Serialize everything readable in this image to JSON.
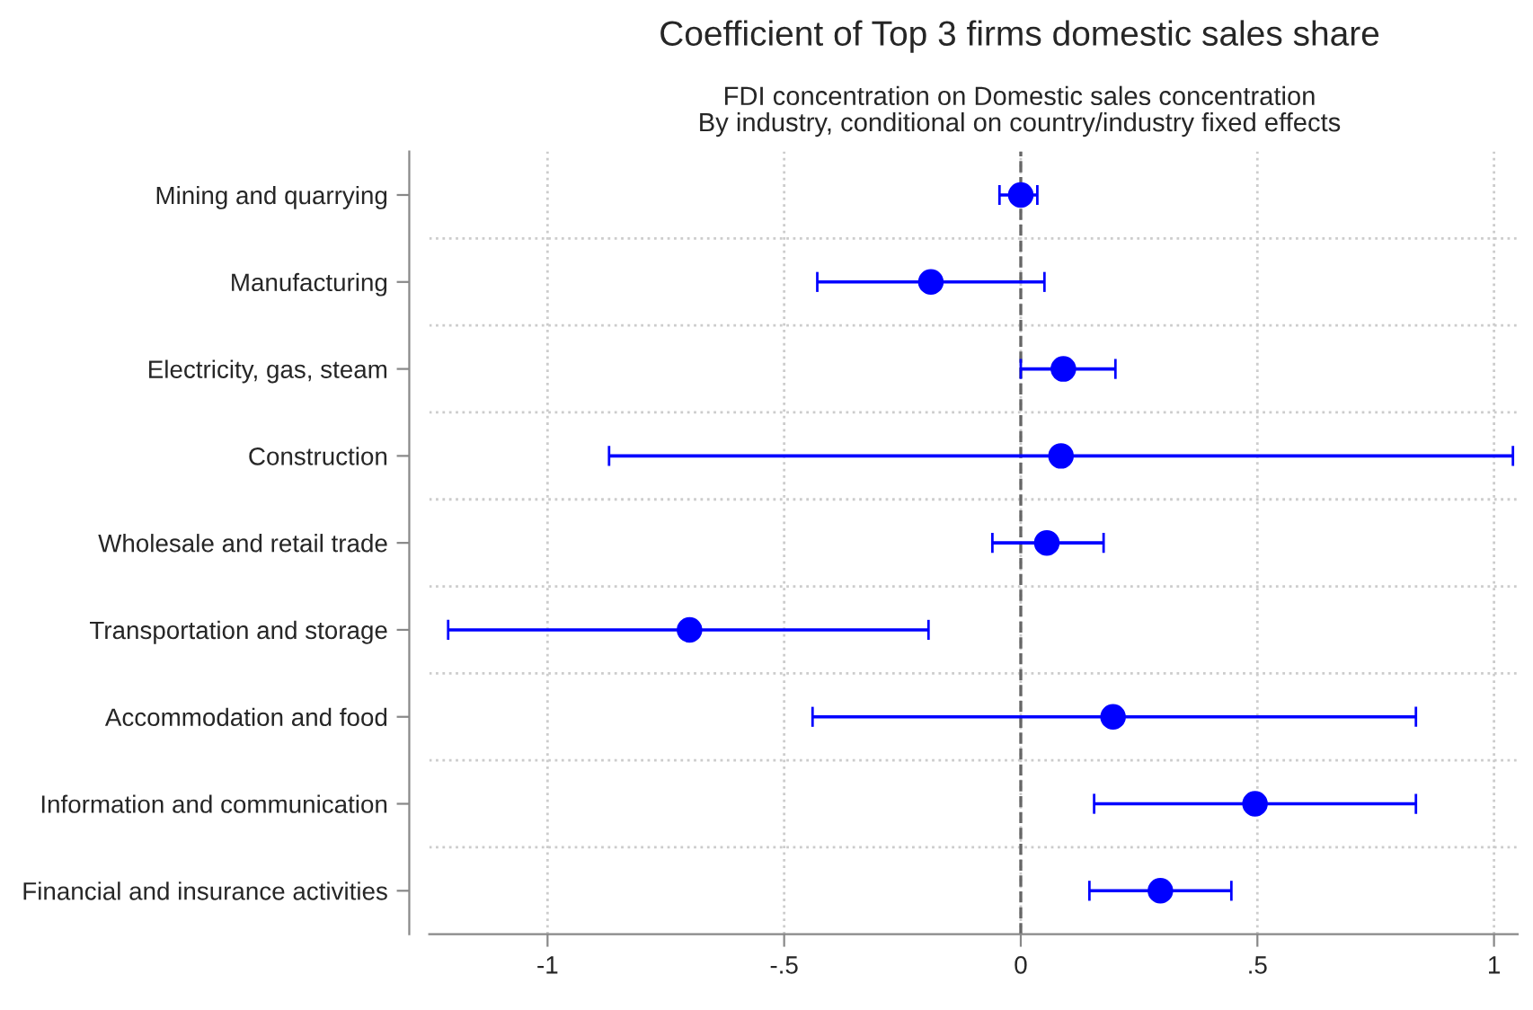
{
  "chart_data": {
    "type": "scatter",
    "orientation": "horizontal",
    "title": "Coefficient of Top 3 firms domestic sales share",
    "subtitle": "FDI concentration on Domestic sales concentration\nBy industry, conditional on country/industry fixed effects",
    "categories": [
      "Mining and quarrying",
      "Manufacturing",
      "Electricity, gas, steam",
      "Construction",
      "Wholesale and retail trade",
      "Transportation and storage",
      "Accommodation and food",
      "Information and communication",
      "Financial and insurance activities"
    ],
    "series": [
      {
        "color": "#0000ff",
        "values": [
          0.0,
          -0.19,
          0.09,
          0.085,
          0.055,
          -0.7,
          0.195,
          0.495,
          0.295
        ],
        "errors": [
          [
            -0.045,
            0.035
          ],
          [
            -0.43,
            0.05
          ],
          [
            0.0,
            0.2
          ],
          [
            -0.87,
            1.04
          ],
          [
            -0.06,
            0.175
          ],
          [
            -1.21,
            -0.195
          ],
          [
            -0.44,
            0.835
          ],
          [
            0.155,
            0.835
          ],
          [
            0.145,
            0.445
          ]
        ]
      }
    ],
    "xlim": [
      -1.25,
      1.05
    ],
    "xticks": [
      -1,
      {
        "value": -0.5,
        "label": "-.5"
      },
      0,
      {
        "value": 0.5,
        "label": ".5"
      },
      1
    ],
    "ref_lines": [
      {
        "axis": "x",
        "value": 0,
        "color": "#666666",
        "line_style": "dashed"
      }
    ],
    "grid": true,
    "marker": "circle",
    "legend": false
  }
}
